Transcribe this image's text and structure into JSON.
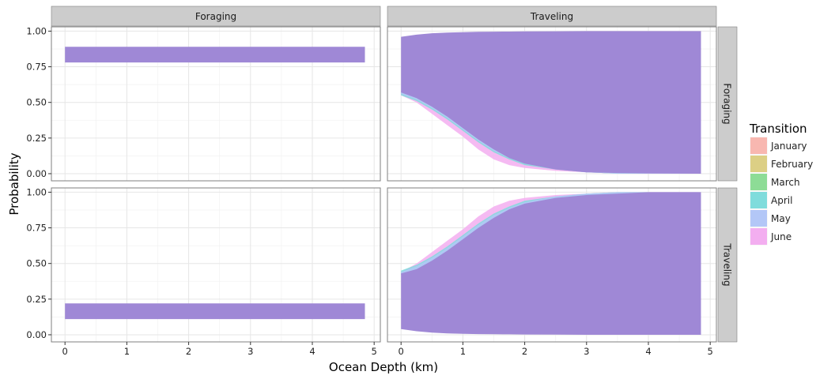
{
  "chart_data": {
    "type": "area",
    "title": "",
    "xlabel": "Ocean Depth (km)",
    "ylabel": "Probability",
    "xlim": [
      -0.22,
      5.1
    ],
    "ylim": [
      -0.05,
      1.03
    ],
    "x_ticks": [
      0,
      1,
      2,
      3,
      4,
      5
    ],
    "y_ticks": [
      0.0,
      0.25,
      0.5,
      0.75,
      1.0
    ],
    "x_tick_labels": [
      "0",
      "1",
      "2",
      "3",
      "4",
      "5"
    ],
    "y_tick_labels": [
      "0.00",
      "0.25",
      "0.50",
      "0.75",
      "1.00"
    ],
    "col_facets": [
      "Foraging",
      "Traveling"
    ],
    "row_facets": [
      "Foraging",
      "Traveling"
    ],
    "grid": true,
    "legend": {
      "title": "Transition",
      "position": "right",
      "entries": [
        {
          "label": "January",
          "color": "#f8b7b0"
        },
        {
          "label": "February",
          "color": "#dccf85"
        },
        {
          "label": "March",
          "color": "#8ddc96"
        },
        {
          "label": "April",
          "color": "#7fdcdc"
        },
        {
          "label": "May",
          "color": "#b3c7f7"
        },
        {
          "label": "June",
          "color": "#f3aef0"
        }
      ]
    },
    "band_color": "#9f88d6",
    "panels": [
      {
        "col": "Foraging",
        "row": "Foraging",
        "bands": [
          {
            "series": "all",
            "x": [
              0,
              4.85
            ],
            "lower": [
              0.78,
              0.78
            ],
            "upper": [
              0.89,
              0.89
            ]
          }
        ]
      },
      {
        "col": "Traveling",
        "row": "Foraging",
        "bands": [
          {
            "series": "June",
            "x": [
              0,
              0.25,
              0.5,
              0.75,
              1.0,
              1.25,
              1.5,
              1.75,
              2.0,
              2.5,
              3.0,
              3.5,
              4.0,
              4.85
            ],
            "lower": [
              0.55,
              0.5,
              0.42,
              0.34,
              0.26,
              0.17,
              0.1,
              0.06,
              0.04,
              0.02,
              0.01,
              0.0,
              0.0,
              0.0
            ],
            "upper": [
              0.58,
              0.56,
              0.5,
              0.43,
              0.37,
              0.3,
              0.23,
              0.17,
              0.12,
              0.06,
              0.03,
              0.02,
              0.01,
              0.0
            ]
          },
          {
            "series": "April",
            "x": [
              0,
              0.25,
              0.5,
              0.75,
              1.0,
              1.25,
              1.5,
              1.75,
              2.0,
              2.5,
              3.0,
              3.5,
              4.0,
              4.85
            ],
            "lower": [
              0.55,
              0.51,
              0.45,
              0.38,
              0.3,
              0.22,
              0.15,
              0.1,
              0.06,
              0.03,
              0.01,
              0.0,
              0.0,
              0.0
            ],
            "upper": [
              0.58,
              0.56,
              0.52,
              0.46,
              0.39,
              0.31,
              0.24,
              0.17,
              0.12,
              0.06,
              0.03,
              0.01,
              0.0,
              0.0
            ]
          },
          {
            "series": "May",
            "x": [
              0,
              0.25,
              0.5,
              0.75,
              1.0,
              1.25,
              1.5,
              1.75,
              2.0,
              2.5,
              3.0,
              3.5,
              4.0,
              4.85
            ],
            "lower": [
              0.56,
              0.52,
              0.46,
              0.39,
              0.31,
              0.23,
              0.16,
              0.11,
              0.07,
              0.03,
              0.01,
              0.0,
              0.0,
              0.0
            ],
            "upper": [
              0.58,
              0.56,
              0.52,
              0.47,
              0.41,
              0.34,
              0.27,
              0.2,
              0.14,
              0.07,
              0.04,
              0.02,
              0.01,
              0.0
            ]
          },
          {
            "series": "all",
            "x": [
              0,
              0.25,
              0.5,
              0.75,
              1.0,
              1.25,
              1.5,
              1.75,
              2.0,
              2.5,
              3.0,
              3.5,
              4.0,
              4.85
            ],
            "lower": [
              0.57,
              0.53,
              0.47,
              0.4,
              0.32,
              0.24,
              0.17,
              0.11,
              0.07,
              0.03,
              0.01,
              0.005,
              0.002,
              0.0
            ],
            "upper": [
              0.96,
              0.975,
              0.985,
              0.99,
              0.993,
              0.995,
              0.996,
              0.997,
              0.998,
              0.999,
              1.0,
              1.0,
              1.0,
              1.0
            ]
          }
        ]
      },
      {
        "col": "Foraging",
        "row": "Traveling",
        "bands": [
          {
            "series": "all",
            "x": [
              0,
              4.85
            ],
            "lower": [
              0.11,
              0.11
            ],
            "upper": [
              0.22,
              0.22
            ]
          }
        ]
      },
      {
        "col": "Traveling",
        "row": "Traveling",
        "bands": [
          {
            "series": "June",
            "x": [
              0,
              0.25,
              0.5,
              0.75,
              1.0,
              1.25,
              1.5,
              1.75,
              2.0,
              2.5,
              3.0,
              3.5,
              4.0,
              4.85
            ],
            "lower": [
              0.42,
              0.44,
              0.5,
              0.57,
              0.63,
              0.7,
              0.77,
              0.83,
              0.88,
              0.94,
              0.97,
              0.98,
              0.99,
              1.0
            ],
            "upper": [
              0.44,
              0.5,
              0.58,
              0.66,
              0.74,
              0.83,
              0.9,
              0.94,
              0.96,
              0.98,
              0.99,
              1.0,
              1.0,
              1.0
            ]
          },
          {
            "series": "April",
            "x": [
              0,
              0.25,
              0.5,
              0.75,
              1.0,
              1.25,
              1.5,
              1.75,
              2.0,
              2.5,
              3.0,
              3.5,
              4.0,
              4.85
            ],
            "lower": [
              0.42,
              0.44,
              0.48,
              0.54,
              0.61,
              0.69,
              0.76,
              0.83,
              0.88,
              0.94,
              0.97,
              0.99,
              1.0,
              1.0
            ],
            "upper": [
              0.45,
              0.49,
              0.55,
              0.62,
              0.7,
              0.78,
              0.85,
              0.9,
              0.94,
              0.97,
              0.99,
              1.0,
              1.0,
              1.0
            ]
          },
          {
            "series": "May",
            "x": [
              0,
              0.25,
              0.5,
              0.75,
              1.0,
              1.25,
              1.5,
              1.75,
              2.0,
              2.5,
              3.0,
              3.5,
              4.0,
              4.85
            ],
            "lower": [
              0.42,
              0.44,
              0.48,
              0.53,
              0.59,
              0.66,
              0.73,
              0.8,
              0.86,
              0.93,
              0.96,
              0.98,
              0.99,
              1.0
            ],
            "upper": [
              0.44,
              0.48,
              0.54,
              0.61,
              0.69,
              0.77,
              0.84,
              0.89,
              0.93,
              0.97,
              0.99,
              1.0,
              1.0,
              1.0
            ]
          },
          {
            "series": "all",
            "x": [
              0,
              0.25,
              0.5,
              0.75,
              1.0,
              1.25,
              1.5,
              1.75,
              2.0,
              2.5,
              3.0,
              3.5,
              4.0,
              4.85
            ],
            "lower": [
              0.04,
              0.025,
              0.015,
              0.01,
              0.007,
              0.005,
              0.004,
              0.003,
              0.002,
              0.001,
              0.0,
              0.0,
              0.0,
              0.0
            ],
            "upper": [
              0.43,
              0.46,
              0.52,
              0.59,
              0.67,
              0.75,
              0.82,
              0.88,
              0.92,
              0.96,
              0.98,
              0.99,
              1.0,
              1.0
            ]
          }
        ]
      }
    ]
  }
}
